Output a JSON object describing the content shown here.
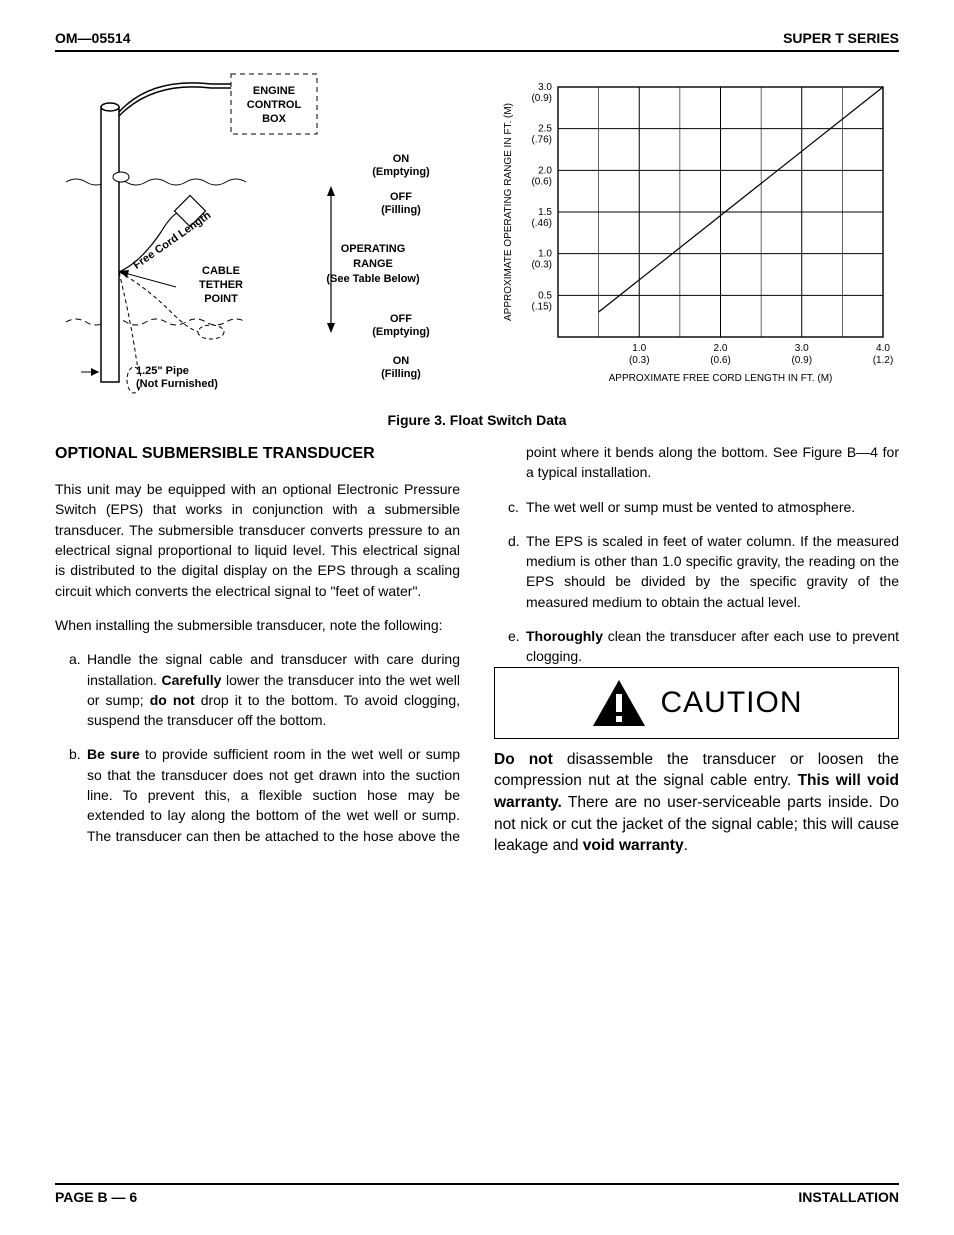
{
  "header": {
    "left": "OM—05514",
    "right": "SUPER T SERIES"
  },
  "footer": {
    "left": "PAGE B — 6",
    "right": "INSTALLATION"
  },
  "figure": {
    "caption": "Figure 3.  Float Switch Data",
    "diagram": {
      "engine_box_l1": "ENGINE",
      "engine_box_l2": "CONTROL",
      "engine_box_l3": "BOX",
      "on_emptying": "ON",
      "emptying": "(Emptying)",
      "off": "OFF",
      "filling": "(Filling)",
      "on_filling": "ON",
      "off_emptying": "OFF",
      "operating_l1": "OPERATING",
      "operating_l2": "RANGE",
      "see_table": "(See Table Below)",
      "cable_l1": "CABLE",
      "cable_l2": "TETHER",
      "cable_l3": "POINT",
      "free_cord": "Free Cord Length",
      "pipe_l1": "1.25\" Pipe",
      "pipe_l2": "(Not Furnished)"
    },
    "chart": {
      "type": "line",
      "x_axis_label": "APPROXIMATE FREE CORD LENGTH IN FT. (M)",
      "y_axis_label": "APPROXIMATE OPERATING RANGE IN FT. (M)",
      "x_ticks": [
        {
          "ft": "1.0",
          "m": "(0.3)"
        },
        {
          "ft": "2.0",
          "m": "(0.6)"
        },
        {
          "ft": "3.0",
          "m": "(0.9)"
        },
        {
          "ft": "4.0",
          "m": "(1.2)"
        }
      ],
      "y_ticks": [
        {
          "ft": "0.5",
          "m": "(.15)"
        },
        {
          "ft": "1.0",
          "m": "(0.3)"
        },
        {
          "ft": "1.5",
          "m": "(.46)"
        },
        {
          "ft": "2.0",
          "m": "(0.6)"
        },
        {
          "ft": "2.5",
          "m": "(.76)"
        },
        {
          "ft": "3.0",
          "m": "(0.9)"
        }
      ],
      "xlim": [
        0,
        4.0
      ],
      "ylim": [
        0,
        3.0
      ],
      "line_points": [
        [
          0.5,
          0.3
        ],
        [
          4.0,
          3.0
        ]
      ],
      "background_color": "#ffffff",
      "grid_color": "#000000",
      "line_color": "#000000",
      "line_width": 1.2
    }
  },
  "section": {
    "title": "OPTIONAL SUBMERSIBLE TRANSDUCER",
    "p1": "This unit may be equipped with an optional Electronic Pressure Switch (EPS) that works in conjunction with a submersible transducer. The submersible transducer converts pressure to an electrical signal proportional to liquid level. This electrical signal is distributed to the digital display on the EPS through a scaling circuit which converts the electrical signal to \"feet of water\".",
    "p2": "When installing the submersible transducer, note the following:",
    "list": {
      "a_pre": "Handle the signal cable and transducer with care during installation. ",
      "a_b1": "Carefully",
      "a_mid": " lower the transducer into the wet well or sump; ",
      "a_b2": "do not",
      "a_post": " drop it to the bottom. To avoid clogging, suspend the transducer off the bottom.",
      "b_b1": "Be sure",
      "b_post": " to provide sufficient room in the wet well or sump so that the transducer does not get drawn into the suction line. To prevent this, a flexible suction hose may be extended to lay along the bottom of the wet well or sump. The transducer can then be attached to the hose above the point where it bends along the bottom. See Figure B—4 for a typical installation.",
      "c": "The wet well or sump must be vented to atmosphere.",
      "d": "The EPS is scaled in feet of water column. If the measured medium is other than 1.0 specific gravity, the reading on the EPS should be divided by the specific gravity of the measured medium to obtain the actual level.",
      "e_b1": "Thoroughly",
      "e_post": " clean the transducer after each use to prevent clogging."
    }
  },
  "caution": {
    "title": "CAUTION",
    "b1": "Do not",
    "t1": " disassemble the transducer or loosen the compression nut at the signal cable entry. ",
    "b2": "This will void warranty.",
    "t2": " There are no user-serviceable parts inside. Do not nick or cut the jacket of the signal cable; this will cause leakage and ",
    "b3": "void warranty",
    "t3": "."
  }
}
